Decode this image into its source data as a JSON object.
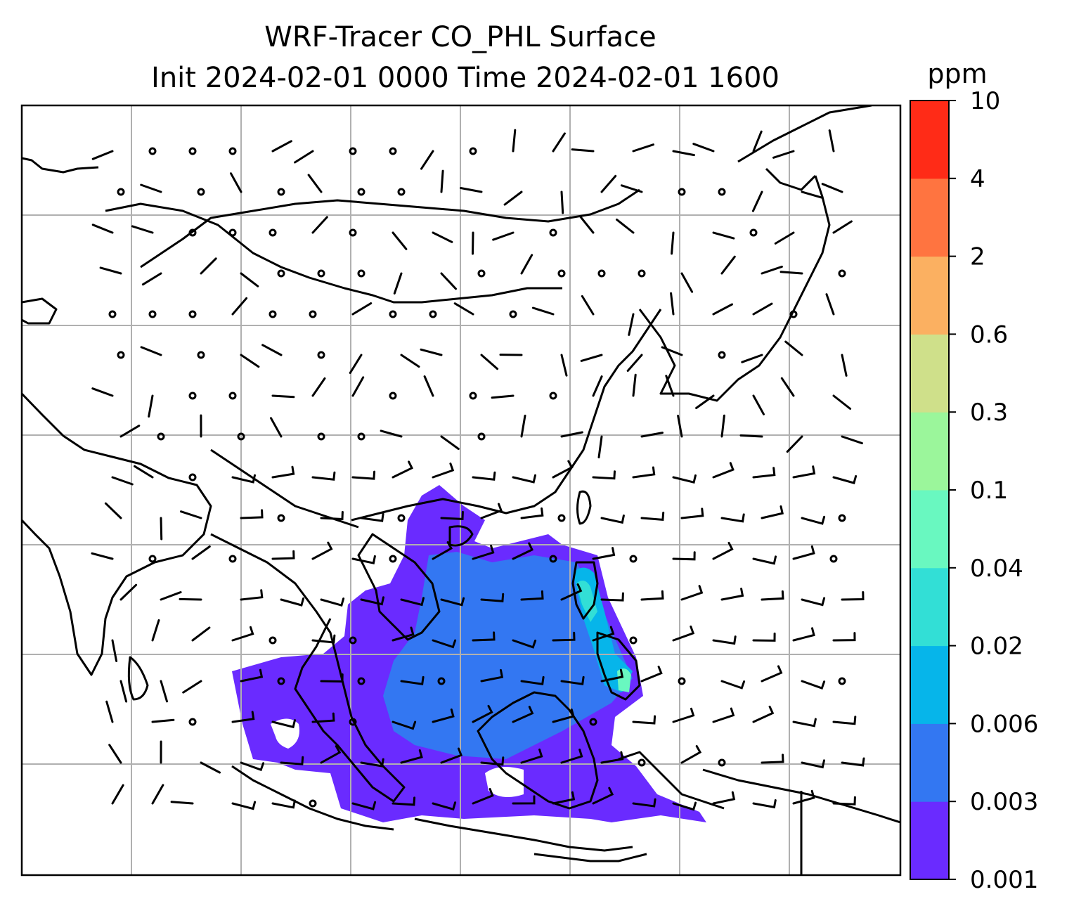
{
  "title": {
    "line1": "WRF-Tracer CO_PHL Surface",
    "line2": "Init 2024-02-01 0000 Time 2024-02-01 1600"
  },
  "colorbar": {
    "unit": "ppm",
    "levels": [
      "0.001",
      "0.003",
      "0.006",
      "0.02",
      "0.04",
      "0.1",
      "0.3",
      "0.6",
      "2",
      "4",
      "10"
    ],
    "colors": [
      "#6a2bff",
      "#3377f2",
      "#06b5ea",
      "#32dfd6",
      "#69f8c0",
      "#9bf69b",
      "#cfe08a",
      "#fbb061",
      "#ff7440",
      "#ff2b17"
    ]
  },
  "map": {
    "background": "#ffffff",
    "gridline_color": "#b0b0b0",
    "coastline_color": "#000000",
    "layers": [
      "coastlines",
      "country-borders",
      "gridlines",
      "co-tracer-concentration",
      "wind-barbs"
    ]
  }
}
